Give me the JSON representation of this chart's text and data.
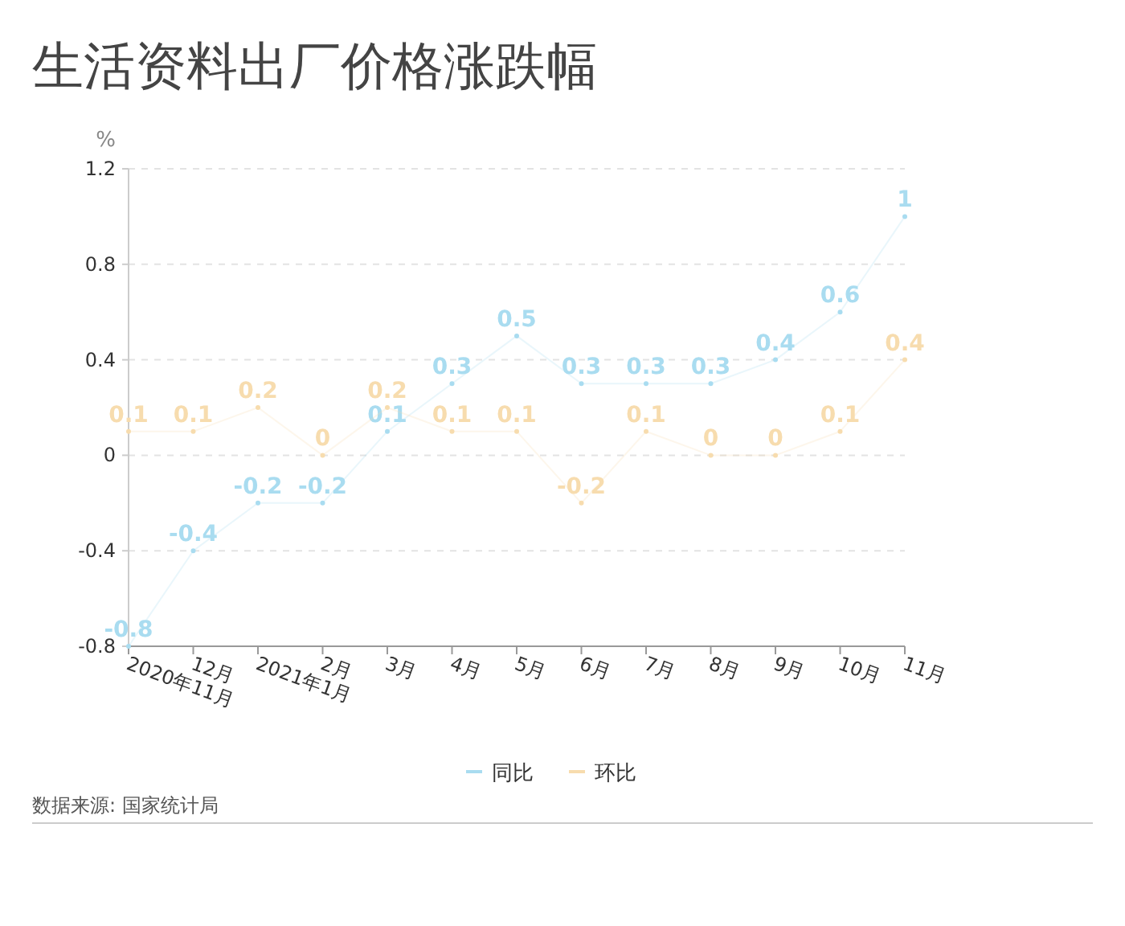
{
  "chart_data": {
    "type": "line",
    "title": "生活资料出厂价格涨跌幅",
    "ylabel": "%",
    "categories": [
      "2020年11月",
      "12月",
      "2021年1月",
      "2月",
      "3月",
      "4月",
      "5月",
      "6月",
      "7月",
      "8月",
      "9月",
      "10月",
      "11月"
    ],
    "series": [
      {
        "name": "同比",
        "color": "#a9dcf0",
        "values": [
          -0.8,
          -0.4,
          -0.2,
          -0.2,
          0.1,
          0.3,
          0.5,
          0.3,
          0.3,
          0.3,
          0.4,
          0.6,
          1
        ]
      },
      {
        "name": "环比",
        "color": "#f7dcae",
        "values": [
          0.1,
          0.1,
          0.2,
          0,
          0.2,
          0.1,
          0.1,
          -0.2,
          0.1,
          0,
          0,
          0.1,
          0.4
        ]
      }
    ],
    "ylim": [
      -0.8,
      1.2
    ],
    "yticks": [
      -0.8,
      -0.4,
      0,
      0.4,
      0.8,
      1.2
    ],
    "grid": "y",
    "legend": "bottom",
    "data_labels": true,
    "marker": "circle",
    "annotations": [
      "数据来源: 国家统计局"
    ]
  }
}
